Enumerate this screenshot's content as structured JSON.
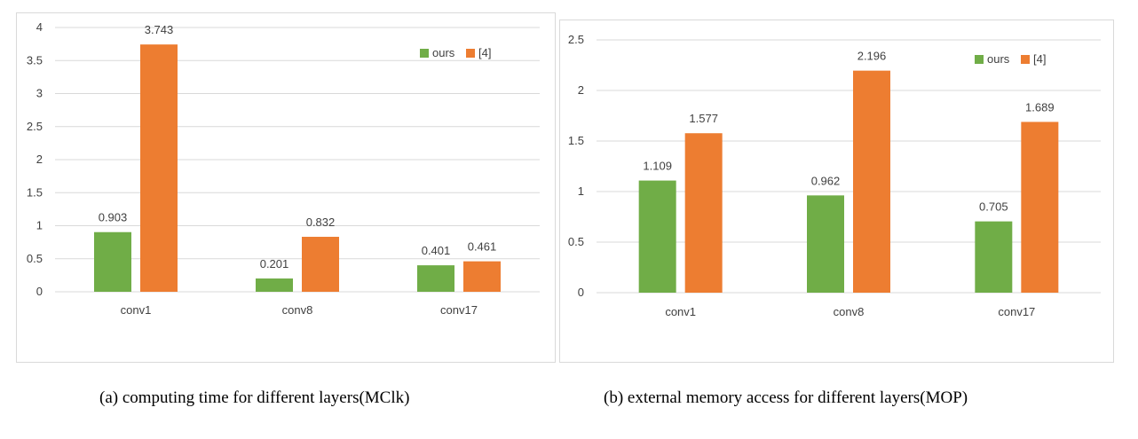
{
  "colors": {
    "ours": "#70AD47",
    "ref": "#ED7D31",
    "grid": "#D9D9D9",
    "text": "#404040",
    "border": "#D9D9D9"
  },
  "captions": {
    "a": "(a) computing time for different layers(MClk)",
    "b": "(b) external memory access for different layers(MOP)"
  },
  "chart_data": [
    {
      "type": "bar",
      "categories": [
        "conv1",
        "conv8",
        "conv17"
      ],
      "series": [
        {
          "name": "ours",
          "values": [
            0.903,
            0.201,
            0.401
          ]
        },
        {
          "name": "[4]",
          "values": [
            3.743,
            0.832,
            0.461
          ]
        }
      ],
      "data_labels": [
        [
          "0.903",
          "0.201",
          "0.401"
        ],
        [
          "3.743",
          "0.832",
          "0.461"
        ]
      ],
      "yticks": [
        "0",
        "0.5",
        "1",
        "1.5",
        "2",
        "2.5",
        "3",
        "3.5",
        "4"
      ],
      "ylim": [
        0,
        4
      ],
      "grid": true,
      "legend": "top-right",
      "title": "",
      "xlabel": "",
      "ylabel": ""
    },
    {
      "type": "bar",
      "categories": [
        "conv1",
        "conv8",
        "conv17"
      ],
      "series": [
        {
          "name": "ours",
          "values": [
            1.109,
            0.962,
            0.705
          ]
        },
        {
          "name": "[4]",
          "values": [
            1.577,
            2.196,
            1.689
          ]
        }
      ],
      "data_labels": [
        [
          "1.109",
          "0.962",
          "0.705"
        ],
        [
          "1.577",
          "2.196",
          "1.689"
        ]
      ],
      "yticks": [
        "0",
        "0.5",
        "1",
        "1.5",
        "2",
        "2.5"
      ],
      "ylim": [
        0,
        2.5
      ],
      "grid": true,
      "legend": "top-right",
      "title": "",
      "xlabel": "",
      "ylabel": ""
    }
  ]
}
